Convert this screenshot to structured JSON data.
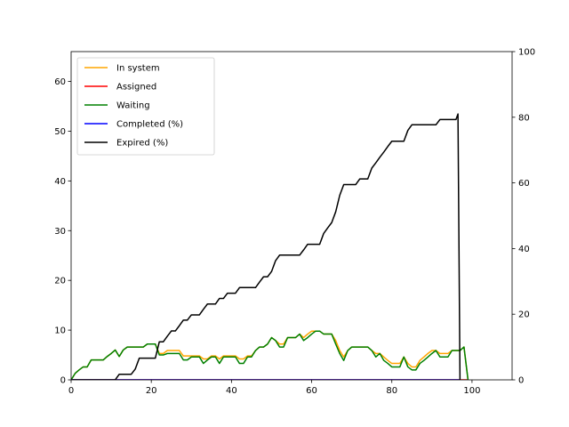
{
  "chart_data": {
    "type": "line",
    "legend_placement": "upper-left",
    "grid": false,
    "x_axis": {
      "range": [
        0,
        110
      ],
      "ticks": [
        0,
        20,
        40,
        60,
        80,
        100
      ]
    },
    "y_axis_left": {
      "range": [
        0,
        66
      ],
      "ticks": [
        0,
        10,
        20,
        30,
        40,
        50,
        60
      ]
    },
    "y_axis_right": {
      "range": [
        0,
        100
      ],
      "ticks": [
        0,
        20,
        40,
        60,
        80,
        100
      ]
    },
    "series": [
      {
        "name": "In system",
        "color": "#ffa500",
        "axis": "left",
        "points": [
          [
            0,
            0
          ],
          [
            1,
            1.3
          ],
          [
            2,
            2
          ],
          [
            3,
            2.6
          ],
          [
            4,
            2.6
          ],
          [
            5,
            4
          ],
          [
            6,
            4
          ],
          [
            7,
            4
          ],
          [
            8,
            4
          ],
          [
            9,
            4.7
          ],
          [
            10,
            5.3
          ],
          [
            11,
            6
          ],
          [
            12,
            4.7
          ],
          [
            13,
            6
          ],
          [
            14,
            6.6
          ],
          [
            15,
            6.6
          ],
          [
            16,
            6.6
          ],
          [
            17,
            6.6
          ],
          [
            18,
            6.6
          ],
          [
            19,
            7.2
          ],
          [
            20,
            7.2
          ],
          [
            21,
            7.2
          ],
          [
            22,
            5.3
          ],
          [
            23,
            5.3
          ],
          [
            24,
            5.9
          ],
          [
            25,
            5.9
          ],
          [
            26,
            5.9
          ],
          [
            27,
            5.9
          ],
          [
            28,
            4.8
          ],
          [
            29,
            4.8
          ],
          [
            30,
            4.8
          ],
          [
            31,
            4.8
          ],
          [
            32,
            4.8
          ],
          [
            33,
            4.2
          ],
          [
            34,
            4.2
          ],
          [
            35,
            4.8
          ],
          [
            36,
            4.8
          ],
          [
            37,
            4.2
          ],
          [
            38,
            4.8
          ],
          [
            39,
            4.8
          ],
          [
            40,
            4.8
          ],
          [
            41,
            4.8
          ],
          [
            42,
            4.2
          ],
          [
            43,
            4.2
          ],
          [
            44,
            4.8
          ],
          [
            45,
            4.8
          ],
          [
            46,
            5.9
          ],
          [
            47,
            6.6
          ],
          [
            48,
            6.6
          ],
          [
            49,
            7.2
          ],
          [
            50,
            8.5
          ],
          [
            51,
            7.9
          ],
          [
            52,
            7.2
          ],
          [
            53,
            7.2
          ],
          [
            54,
            8.5
          ],
          [
            55,
            8.5
          ],
          [
            56,
            8.5
          ],
          [
            57,
            9.2
          ],
          [
            58,
            8.5
          ],
          [
            59,
            9.2
          ],
          [
            60,
            9.8
          ],
          [
            61,
            9.8
          ],
          [
            62,
            9.8
          ],
          [
            63,
            9.2
          ],
          [
            64,
            9.2
          ],
          [
            65,
            9.2
          ],
          [
            66,
            7.9
          ],
          [
            67,
            5.9
          ],
          [
            68,
            4.6
          ],
          [
            69,
            5.9
          ],
          [
            70,
            6.6
          ],
          [
            71,
            6.6
          ],
          [
            72,
            6.6
          ],
          [
            73,
            6.6
          ],
          [
            74,
            6.6
          ],
          [
            75,
            5.9
          ],
          [
            76,
            5.3
          ],
          [
            77,
            5.3
          ],
          [
            78,
            4.6
          ],
          [
            79,
            3.9
          ],
          [
            80,
            3.3
          ],
          [
            81,
            3.3
          ],
          [
            82,
            3.3
          ],
          [
            83,
            4.6
          ],
          [
            84,
            3.3
          ],
          [
            85,
            2.6
          ],
          [
            86,
            2.6
          ],
          [
            87,
            3.9
          ],
          [
            88,
            4.6
          ],
          [
            89,
            5.3
          ],
          [
            90,
            5.9
          ],
          [
            91,
            5.9
          ],
          [
            92,
            5.3
          ],
          [
            93,
            5.3
          ],
          [
            94,
            5.3
          ],
          [
            95,
            5.9
          ],
          [
            96,
            5.9
          ],
          [
            97,
            5.9
          ],
          [
            98,
            6.6
          ],
          [
            99,
            0
          ]
        ]
      },
      {
        "name": "Assigned",
        "color": "#ff0000",
        "axis": "left",
        "points": [
          [
            0,
            0
          ],
          [
            99,
            0
          ]
        ]
      },
      {
        "name": "Waiting",
        "color": "#008000",
        "axis": "left",
        "points": [
          [
            0,
            0
          ],
          [
            1,
            1.3
          ],
          [
            2,
            2
          ],
          [
            3,
            2.6
          ],
          [
            4,
            2.6
          ],
          [
            5,
            4
          ],
          [
            6,
            4
          ],
          [
            7,
            4
          ],
          [
            8,
            4
          ],
          [
            9,
            4.7
          ],
          [
            10,
            5.3
          ],
          [
            11,
            6
          ],
          [
            12,
            4.7
          ],
          [
            13,
            6
          ],
          [
            14,
            6.6
          ],
          [
            15,
            6.6
          ],
          [
            16,
            6.6
          ],
          [
            17,
            6.6
          ],
          [
            18,
            6.6
          ],
          [
            19,
            7.2
          ],
          [
            20,
            7.2
          ],
          [
            21,
            7.2
          ],
          [
            22,
            5
          ],
          [
            23,
            5
          ],
          [
            24,
            5.3
          ],
          [
            25,
            5.3
          ],
          [
            26,
            5.3
          ],
          [
            27,
            5.3
          ],
          [
            28,
            4
          ],
          [
            29,
            4
          ],
          [
            30,
            4.6
          ],
          [
            31,
            4.6
          ],
          [
            32,
            4.6
          ],
          [
            33,
            3.3
          ],
          [
            34,
            4
          ],
          [
            35,
            4.6
          ],
          [
            36,
            4.6
          ],
          [
            37,
            3.3
          ],
          [
            38,
            4.6
          ],
          [
            39,
            4.6
          ],
          [
            40,
            4.6
          ],
          [
            41,
            4.6
          ],
          [
            42,
            3.3
          ],
          [
            43,
            3.3
          ],
          [
            44,
            4.6
          ],
          [
            45,
            4.6
          ],
          [
            46,
            5.9
          ],
          [
            47,
            6.6
          ],
          [
            48,
            6.6
          ],
          [
            49,
            7.2
          ],
          [
            50,
            8.5
          ],
          [
            51,
            7.9
          ],
          [
            52,
            6.6
          ],
          [
            53,
            6.6
          ],
          [
            54,
            8.5
          ],
          [
            55,
            8.5
          ],
          [
            56,
            8.5
          ],
          [
            57,
            9.2
          ],
          [
            58,
            7.9
          ],
          [
            59,
            8.5
          ],
          [
            60,
            9.2
          ],
          [
            61,
            9.8
          ],
          [
            62,
            9.8
          ],
          [
            63,
            9.2
          ],
          [
            64,
            9.2
          ],
          [
            65,
            9.2
          ],
          [
            66,
            7.2
          ],
          [
            67,
            5.3
          ],
          [
            68,
            3.9
          ],
          [
            69,
            5.9
          ],
          [
            70,
            6.6
          ],
          [
            71,
            6.6
          ],
          [
            72,
            6.6
          ],
          [
            73,
            6.6
          ],
          [
            74,
            6.6
          ],
          [
            75,
            5.9
          ],
          [
            76,
            4.6
          ],
          [
            77,
            5.3
          ],
          [
            78,
            3.9
          ],
          [
            79,
            3.3
          ],
          [
            80,
            2.6
          ],
          [
            81,
            2.6
          ],
          [
            82,
            2.6
          ],
          [
            83,
            4.6
          ],
          [
            84,
            2.6
          ],
          [
            85,
            2
          ],
          [
            86,
            2
          ],
          [
            87,
            3.3
          ],
          [
            88,
            3.9
          ],
          [
            89,
            4.6
          ],
          [
            90,
            5.3
          ],
          [
            91,
            5.9
          ],
          [
            92,
            4.6
          ],
          [
            93,
            4.6
          ],
          [
            94,
            4.6
          ],
          [
            95,
            5.9
          ],
          [
            96,
            5.9
          ],
          [
            97,
            5.9
          ],
          [
            98,
            6.6
          ],
          [
            99,
            0
          ]
        ]
      },
      {
        "name": "Completed (%)",
        "color": "#0000ff",
        "axis": "right",
        "points": [
          [
            0,
            0
          ],
          [
            97,
            0
          ]
        ]
      },
      {
        "name": "Expired (%)",
        "color": "#000000",
        "axis": "right",
        "points": [
          [
            0,
            0
          ],
          [
            11,
            0
          ],
          [
            12,
            1.7
          ],
          [
            13,
            1.7
          ],
          [
            14,
            1.7
          ],
          [
            15,
            1.7
          ],
          [
            16,
            3.3
          ],
          [
            17,
            6.6
          ],
          [
            18,
            6.6
          ],
          [
            19,
            6.6
          ],
          [
            20,
            6.6
          ],
          [
            21,
            6.6
          ],
          [
            22,
            11.6
          ],
          [
            23,
            11.6
          ],
          [
            24,
            13.3
          ],
          [
            25,
            14.9
          ],
          [
            26,
            14.9
          ],
          [
            27,
            16.5
          ],
          [
            28,
            18.2
          ],
          [
            29,
            18.2
          ],
          [
            30,
            19.8
          ],
          [
            31,
            19.8
          ],
          [
            32,
            19.8
          ],
          [
            33,
            21.5
          ],
          [
            34,
            23.1
          ],
          [
            35,
            23.1
          ],
          [
            36,
            23.1
          ],
          [
            37,
            24.8
          ],
          [
            38,
            24.8
          ],
          [
            39,
            26.4
          ],
          [
            40,
            26.4
          ],
          [
            41,
            26.4
          ],
          [
            42,
            28.1
          ],
          [
            43,
            28.1
          ],
          [
            44,
            28.1
          ],
          [
            45,
            28.1
          ],
          [
            46,
            28.1
          ],
          [
            47,
            29.8
          ],
          [
            48,
            31.4
          ],
          [
            49,
            31.4
          ],
          [
            50,
            33
          ],
          [
            51,
            36.3
          ],
          [
            52,
            38
          ],
          [
            53,
            38
          ],
          [
            54,
            38
          ],
          [
            55,
            38
          ],
          [
            56,
            38
          ],
          [
            57,
            38
          ],
          [
            58,
            39.6
          ],
          [
            59,
            41.3
          ],
          [
            60,
            41.3
          ],
          [
            61,
            41.3
          ],
          [
            62,
            41.3
          ],
          [
            63,
            44.6
          ],
          [
            64,
            46.3
          ],
          [
            65,
            47.9
          ],
          [
            66,
            51.2
          ],
          [
            67,
            56.2
          ],
          [
            68,
            59.5
          ],
          [
            69,
            59.5
          ],
          [
            70,
            59.5
          ],
          [
            71,
            59.5
          ],
          [
            72,
            61.2
          ],
          [
            73,
            61.2
          ],
          [
            74,
            61.2
          ],
          [
            75,
            64.5
          ],
          [
            76,
            66.1
          ],
          [
            77,
            67.8
          ],
          [
            78,
            69.4
          ],
          [
            79,
            71.1
          ],
          [
            80,
            72.7
          ],
          [
            81,
            72.7
          ],
          [
            82,
            72.7
          ],
          [
            83,
            72.7
          ],
          [
            84,
            76
          ],
          [
            85,
            77.7
          ],
          [
            86,
            77.7
          ],
          [
            87,
            77.7
          ],
          [
            88,
            77.7
          ],
          [
            89,
            77.7
          ],
          [
            90,
            77.7
          ],
          [
            91,
            77.7
          ],
          [
            92,
            79.3
          ],
          [
            93,
            79.3
          ],
          [
            94,
            79.3
          ],
          [
            95,
            79.3
          ],
          [
            96,
            79.3
          ],
          [
            96.5,
            81
          ],
          [
            97,
            0
          ]
        ]
      }
    ]
  }
}
